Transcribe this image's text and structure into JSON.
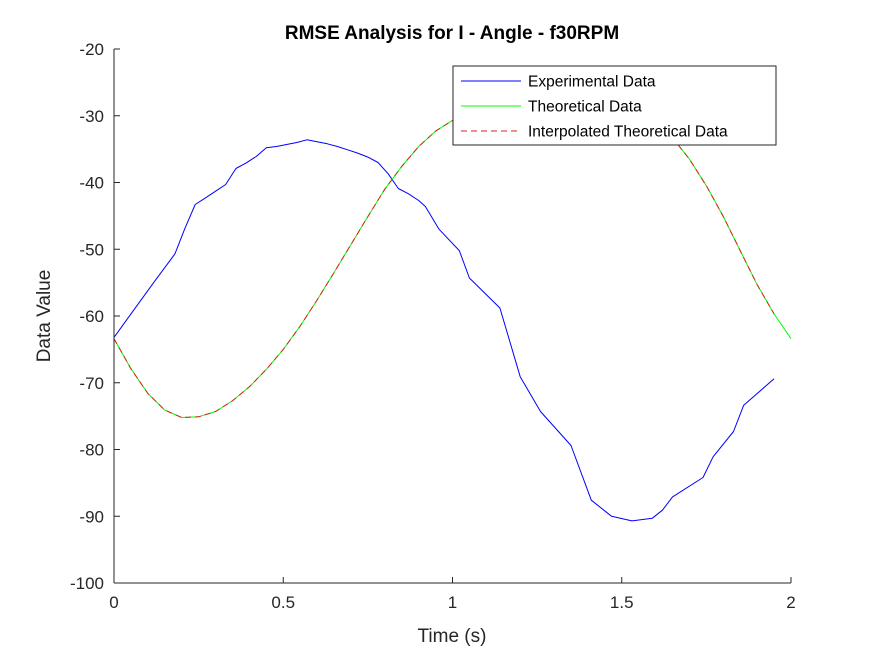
{
  "chart_data": {
    "type": "line",
    "title": "RMSE Analysis for I - Angle - f30RPM",
    "xlabel": "Time (s)",
    "ylabel": "Data Value",
    "xlim": [
      0,
      2
    ],
    "ylim": [
      -100,
      -20
    ],
    "xticks": [
      0,
      0.5,
      1,
      1.5,
      2
    ],
    "yticks": [
      -100,
      -90,
      -80,
      -70,
      -60,
      -50,
      -40,
      -30,
      -20
    ],
    "grid": false,
    "legend_position": "top-right",
    "series": [
      {
        "name": "Experimental Data",
        "color": "#0000ff",
        "style": "solid",
        "x": [
          0,
          0.06,
          0.12,
          0.18,
          0.21,
          0.24,
          0.27,
          0.3,
          0.33,
          0.36,
          0.39,
          0.42,
          0.45,
          0.48,
          0.51,
          0.54,
          0.57,
          0.6,
          0.63,
          0.66,
          0.69,
          0.72,
          0.75,
          0.78,
          0.81,
          0.84,
          0.87,
          0.9,
          0.92,
          0.96,
          1.02,
          1.05,
          1.14,
          1.2,
          1.26,
          1.35,
          1.41,
          1.47,
          1.53,
          1.59,
          1.62,
          1.65,
          1.74,
          1.77,
          1.83,
          1.86,
          1.95
        ],
        "y": [
          -63.2,
          -59.0,
          -54.8,
          -50.7,
          -46.8,
          -43.3,
          -42.3,
          -41.3,
          -40.3,
          -37.9,
          -37.1,
          -36.1,
          -34.8,
          -34.6,
          -34.3,
          -34.0,
          -33.6,
          -33.9,
          -34.2,
          -34.6,
          -35.1,
          -35.6,
          -36.2,
          -37.0,
          -38.7,
          -40.9,
          -41.7,
          -42.7,
          -43.6,
          -47.0,
          -50.2,
          -54.3,
          -58.8,
          -69.1,
          -74.3,
          -79.4,
          -87.6,
          -90.0,
          -90.7,
          -90.3,
          -89.1,
          -87.1,
          -84.2,
          -81.1,
          -77.3,
          -73.4,
          -69.4
        ]
      },
      {
        "name": "Theoretical Data",
        "color": "#00ff00",
        "style": "solid",
        "x": [
          0,
          0.05,
          0.1,
          0.15,
          0.2,
          0.25,
          0.3,
          0.35,
          0.4,
          0.45,
          0.5,
          0.55,
          0.6,
          0.65,
          0.7,
          0.75,
          0.8,
          0.85,
          0.9,
          0.95,
          1.0,
          1.05,
          1.1,
          1.15,
          1.2,
          1.25,
          1.3,
          1.35,
          1.4,
          1.45,
          1.5,
          1.55,
          1.6,
          1.65,
          1.7,
          1.75,
          1.8,
          1.85,
          1.9,
          1.95,
          2.0
        ],
        "y": [
          -63.4,
          -67.9,
          -71.6,
          -74.1,
          -75.2,
          -75.1,
          -74.3,
          -72.7,
          -70.6,
          -68.0,
          -65.0,
          -61.5,
          -57.6,
          -53.5,
          -49.3,
          -45.1,
          -41.0,
          -37.6,
          -34.6,
          -32.3,
          -30.7,
          -29.8,
          -29.4,
          -29.1,
          -28.9,
          -28.8,
          -28.8,
          -28.8,
          -28.9,
          -29.0,
          -29.2,
          -29.7,
          -31.0,
          -33.3,
          -36.5,
          -40.5,
          -45.1,
          -50.2,
          -55.3,
          -59.7,
          -63.4
        ]
      },
      {
        "name": "Interpolated Theoretical Data",
        "color": "#e11d1d",
        "style": "dashed",
        "x": [
          0,
          0.05,
          0.1,
          0.15,
          0.2,
          0.25,
          0.3,
          0.35,
          0.4,
          0.45,
          0.5,
          0.55,
          0.6,
          0.65,
          0.7,
          0.75,
          0.8,
          0.85,
          0.9,
          0.95,
          1.0,
          1.05,
          1.1,
          1.15,
          1.2,
          1.25,
          1.3,
          1.35,
          1.4,
          1.45,
          1.5,
          1.55,
          1.6,
          1.65,
          1.7,
          1.75,
          1.8,
          1.85,
          1.9,
          1.95
        ],
        "y": [
          -63.4,
          -67.9,
          -71.6,
          -74.1,
          -75.2,
          -75.1,
          -74.3,
          -72.7,
          -70.6,
          -68.0,
          -65.0,
          -61.5,
          -57.6,
          -53.5,
          -49.3,
          -45.1,
          -41.0,
          -37.6,
          -34.6,
          -32.3,
          -30.7,
          -29.8,
          -29.4,
          -29.1,
          -28.9,
          -28.8,
          -28.8,
          -28.8,
          -28.9,
          -29.0,
          -29.2,
          -29.7,
          -31.0,
          -33.3,
          -36.5,
          -40.5,
          -45.1,
          -50.2,
          -55.3,
          -59.7
        ]
      }
    ]
  }
}
